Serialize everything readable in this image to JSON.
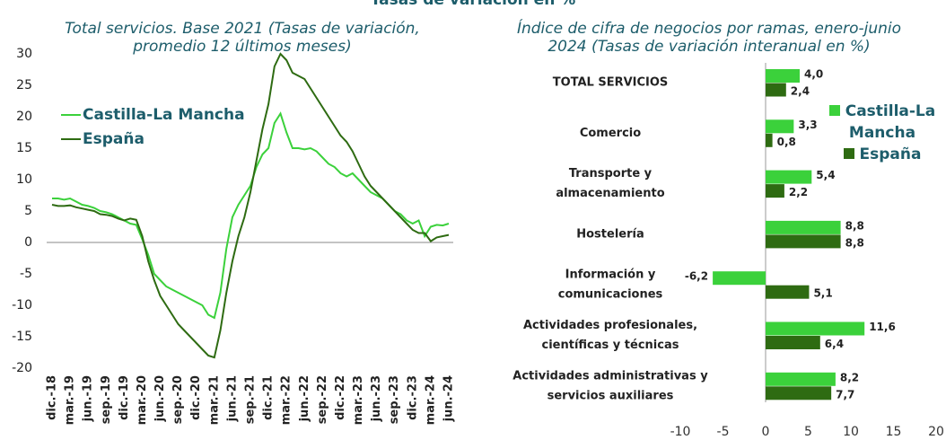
{
  "heading": "Tasas de variación en %",
  "chart_data": [
    {
      "type": "line",
      "title": [
        "Total servicios. Base 2021 (Tasas de variación,",
        "promedio 12 últimos meses)"
      ],
      "categories": [
        "dic.-18",
        null,
        null,
        "mar.-19",
        null,
        null,
        "jun.-19",
        null,
        null,
        "sep.-19",
        null,
        null,
        "dic.-19",
        null,
        null,
        "mar.-20",
        null,
        null,
        "jun.-20",
        null,
        null,
        "sep.-20",
        null,
        null,
        "dic.-20",
        null,
        null,
        "mar.-21",
        null,
        null,
        "jun.-21",
        null,
        null,
        "sep.-21",
        null,
        null,
        "dic.-21",
        null,
        null,
        "mar.-22",
        null,
        null,
        "jun.-22",
        null,
        null,
        "sep.-22",
        null,
        null,
        "dic.-22",
        null,
        null,
        "mar.-23",
        null,
        null,
        "jun.-23",
        null,
        null,
        "sep.-23",
        null,
        null,
        "dic.-23",
        null,
        null,
        "mar.-24",
        null,
        null,
        "jun.-24"
      ],
      "series": [
        {
          "name": "Castilla-La Mancha",
          "color": "#3bd13b",
          "values": [
            7,
            7,
            6.8,
            7,
            6.5,
            6,
            5.8,
            5.5,
            5,
            4.8,
            4.5,
            4,
            3.5,
            3,
            2.8,
            0.5,
            -2,
            -5,
            -6,
            -7,
            -7.5,
            -8,
            -8.5,
            -9,
            -9.5,
            -10,
            -11.5,
            -12,
            -8,
            -1,
            4,
            6,
            7.5,
            9,
            12,
            14,
            15,
            19,
            20.5,
            17.5,
            15,
            15,
            14.8,
            15,
            14.5,
            13.5,
            12.5,
            12,
            11,
            10.5,
            11,
            10,
            9,
            8,
            7.5,
            7,
            6,
            5,
            4.5,
            3.5,
            3,
            3.5,
            1,
            2.5,
            2.8,
            2.7,
            3
          ]
        },
        {
          "name": "España",
          "color": "#2e6b12",
          "values": [
            6,
            5.8,
            5.8,
            5.9,
            5.6,
            5.4,
            5.2,
            5,
            4.5,
            4.4,
            4.2,
            3.8,
            3.5,
            3.8,
            3.6,
            1,
            -3,
            -6,
            -8.5,
            -10,
            -11.5,
            -13,
            -14,
            -15,
            -16,
            -17,
            -18,
            -18.3,
            -14,
            -8,
            -3,
            1,
            4,
            8,
            13,
            18,
            22,
            28,
            30,
            29,
            27,
            26.5,
            26,
            24.5,
            23,
            21.5,
            20,
            18.5,
            17,
            16,
            14.5,
            12.5,
            10.5,
            9,
            8,
            7,
            6,
            5,
            4,
            3,
            2,
            1.5,
            1.5,
            0.2,
            0.8,
            1,
            1.2
          ]
        }
      ],
      "ylim": [
        -20,
        30
      ],
      "yticks": [
        -20,
        -15,
        -10,
        -5,
        0,
        5,
        10,
        15,
        20,
        25,
        30
      ],
      "grid": false,
      "legend": "upper left"
    },
    {
      "type": "bar",
      "orientation": "horizontal",
      "title": [
        "Índice de cifra de negocios por ramas, enero-junio",
        "2024 (Tasas de variación interanual en %)"
      ],
      "categories": [
        [
          "TOTAL SERVICIOS"
        ],
        [
          "Comercio"
        ],
        [
          "Transporte y",
          "almacenamiento"
        ],
        [
          "Hostelería"
        ],
        [
          "Información y",
          "comunicaciones"
        ],
        [
          "Actividades profesionales,",
          "científicas y técnicas"
        ],
        [
          "Actividades administrativas y",
          "servicios auxiliares"
        ]
      ],
      "series": [
        {
          "name": "Castilla-La Mancha",
          "color": "#3bd13b",
          "values": [
            4.0,
            3.3,
            5.4,
            8.8,
            -6.2,
            11.6,
            8.2
          ],
          "value_labels": [
            "4,0",
            "3,3",
            "5,4",
            "8,8",
            "-6,2",
            "11,6",
            "8,2"
          ]
        },
        {
          "name": "España",
          "color": "#2e6b12",
          "values": [
            2.4,
            0.8,
            2.2,
            8.8,
            5.1,
            6.4,
            7.7
          ],
          "value_labels": [
            "2,4",
            "0,8",
            "2,2",
            "8,8",
            "5,1",
            "6,4",
            "7,7"
          ]
        }
      ],
      "xlim": [
        -10,
        20
      ],
      "xticks": [
        -10,
        -5,
        0,
        5,
        10,
        15,
        20
      ],
      "grid": false,
      "legend": "upper right"
    }
  ]
}
